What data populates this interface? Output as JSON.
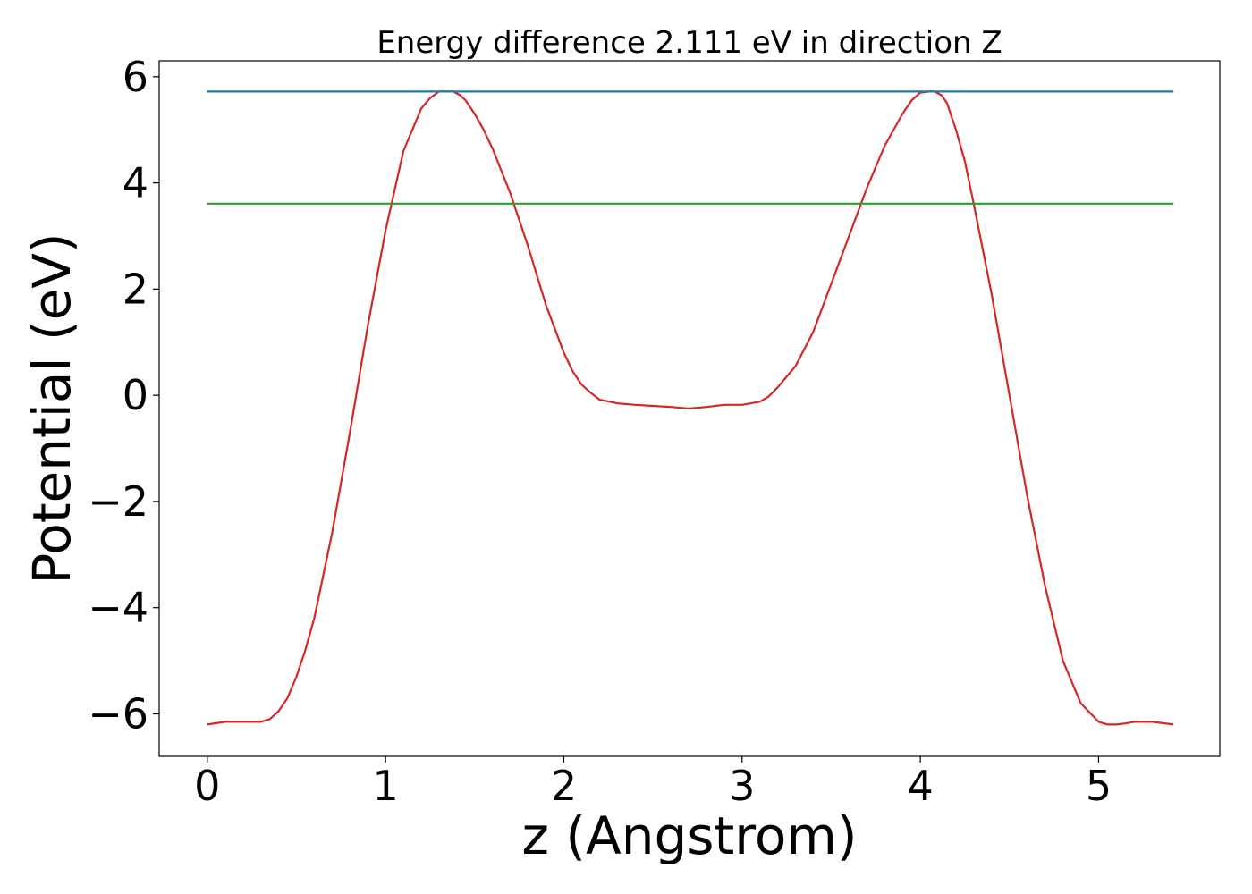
{
  "chart_data": {
    "type": "line",
    "title": "Energy difference 2.111 eV in direction Z",
    "xlabel": "z (Angstrom)",
    "ylabel": "Potential (eV)",
    "xlim": [
      -0.27,
      5.68
    ],
    "ylim": [
      -6.8,
      6.3
    ],
    "xticks": [
      0,
      1,
      2,
      3,
      4,
      5
    ],
    "xtick_labels": [
      "0",
      "1",
      "2",
      "3",
      "4",
      "5"
    ],
    "yticks": [
      -6,
      -4,
      -2,
      0,
      2,
      4,
      6
    ],
    "ytick_labels": [
      "−6",
      "−4",
      "−2",
      "0",
      "2",
      "4",
      "6"
    ],
    "grid": false,
    "series": [
      {
        "color": "#d62728",
        "x": [
          0,
          0.1,
          0.2,
          0.3,
          0.35,
          0.4,
          0.45,
          0.5,
          0.55,
          0.6,
          0.7,
          0.8,
          0.9,
          1.0,
          1.1,
          1.2,
          1.25,
          1.3,
          1.35,
          1.38,
          1.42,
          1.45,
          1.5,
          1.55,
          1.6,
          1.7,
          1.8,
          1.9,
          2.0,
          2.05,
          2.1,
          2.15,
          2.2,
          2.3,
          2.4,
          2.5,
          2.6,
          2.7,
          2.8,
          2.9,
          3.0,
          3.1,
          3.15,
          3.2,
          3.3,
          3.4,
          3.5,
          3.6,
          3.7,
          3.8,
          3.9,
          3.95,
          4.0,
          4.05,
          4.08,
          4.12,
          4.15,
          4.2,
          4.25,
          4.3,
          4.4,
          4.5,
          4.6,
          4.7,
          4.8,
          4.9,
          5.0,
          5.05,
          5.1,
          5.15,
          5.2,
          5.3,
          5.42
        ],
        "y": [
          -6.2,
          -6.15,
          -6.15,
          -6.15,
          -6.1,
          -5.95,
          -5.7,
          -5.3,
          -4.8,
          -4.2,
          -2.6,
          -0.7,
          1.3,
          3.1,
          4.6,
          5.4,
          5.6,
          5.72,
          5.72,
          5.72,
          5.65,
          5.55,
          5.3,
          5.0,
          4.65,
          3.8,
          2.8,
          1.7,
          0.8,
          0.45,
          0.2,
          0.05,
          -0.08,
          -0.15,
          -0.18,
          -0.2,
          -0.22,
          -0.25,
          -0.22,
          -0.18,
          -0.18,
          -0.12,
          -0.02,
          0.15,
          0.55,
          1.2,
          2.1,
          3.0,
          3.9,
          4.7,
          5.3,
          5.55,
          5.7,
          5.72,
          5.72,
          5.65,
          5.5,
          5.0,
          4.4,
          3.6,
          1.9,
          0.0,
          -1.9,
          -3.6,
          -5.0,
          -5.8,
          -6.15,
          -6.2,
          -6.2,
          -6.18,
          -6.15,
          -6.15,
          -6.2
        ]
      },
      {
        "color": "#1f77b4",
        "x": [
          0,
          5.42
        ],
        "y": [
          5.72,
          5.72
        ]
      },
      {
        "color": "#2ca02c",
        "x": [
          0,
          5.42
        ],
        "y": [
          3.61,
          3.61
        ]
      }
    ]
  }
}
